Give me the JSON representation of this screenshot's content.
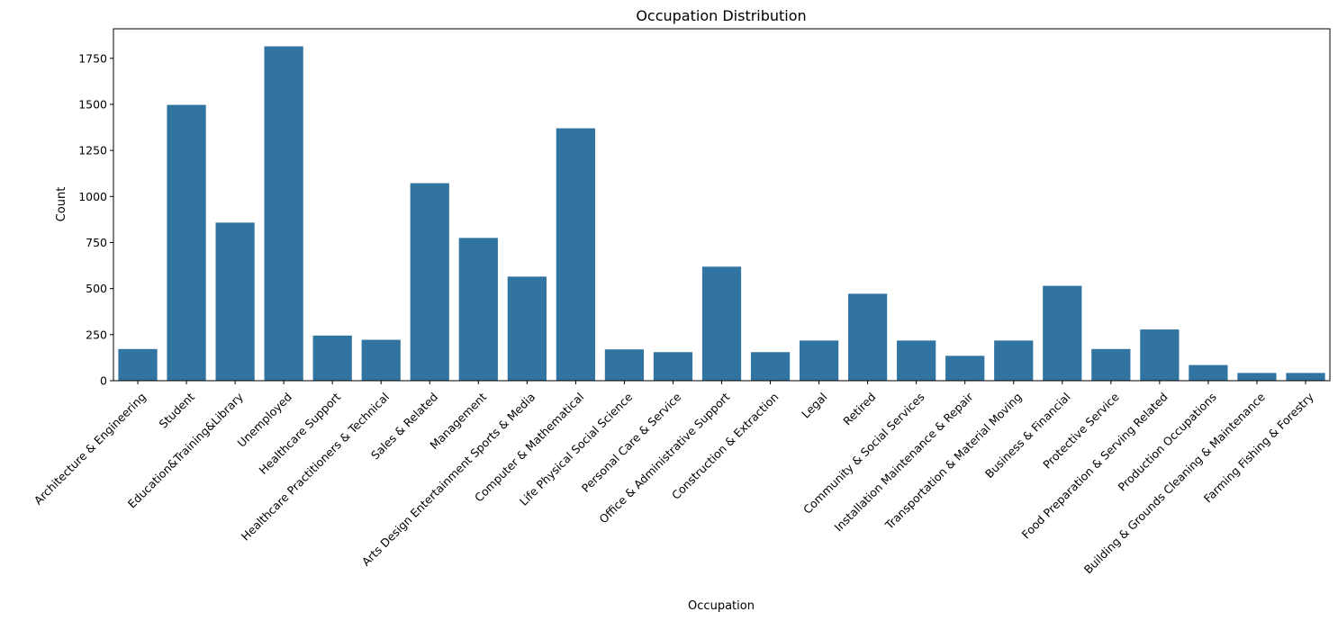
{
  "chart_data": {
    "type": "bar",
    "title": "Occupation Distribution",
    "xlabel": "Occupation",
    "ylabel": "Count",
    "ylim": [
      0,
      1910
    ],
    "yticks": [
      "0",
      "250",
      "500",
      "750",
      "1000",
      "1250",
      "1500",
      "1750"
    ],
    "bar_color": "#3274a1",
    "grid": false,
    "categories": [
      "Architecture & Engineering",
      "Student",
      "Education&Training&Library",
      "Unemployed",
      "Healthcare Support",
      "Healthcare Practitioners & Technical",
      "Sales & Related",
      "Management",
      "Arts Design Entertainment Sports & Media",
      "Computer & Mathematical",
      "Life Physical Social Science",
      "Personal Care & Service",
      "Office & Administrative Support",
      "Construction & Extraction",
      "Legal",
      "Retired",
      "Community & Social Services",
      "Installation Maintenance & Repair",
      "Transportation & Material Moving",
      "Business & Financial",
      "Protective Service",
      "Food Preparation & Serving Related",
      "Production Occupations",
      "Building & Grounds Cleaning & Maintenance",
      "Farming Fishing & Forestry"
    ],
    "values": [
      172,
      1497,
      858,
      1815,
      245,
      222,
      1072,
      775,
      565,
      1370,
      170,
      155,
      619,
      155,
      218,
      472,
      218,
      135,
      218,
      515,
      172,
      278,
      85,
      42,
      42
    ]
  }
}
